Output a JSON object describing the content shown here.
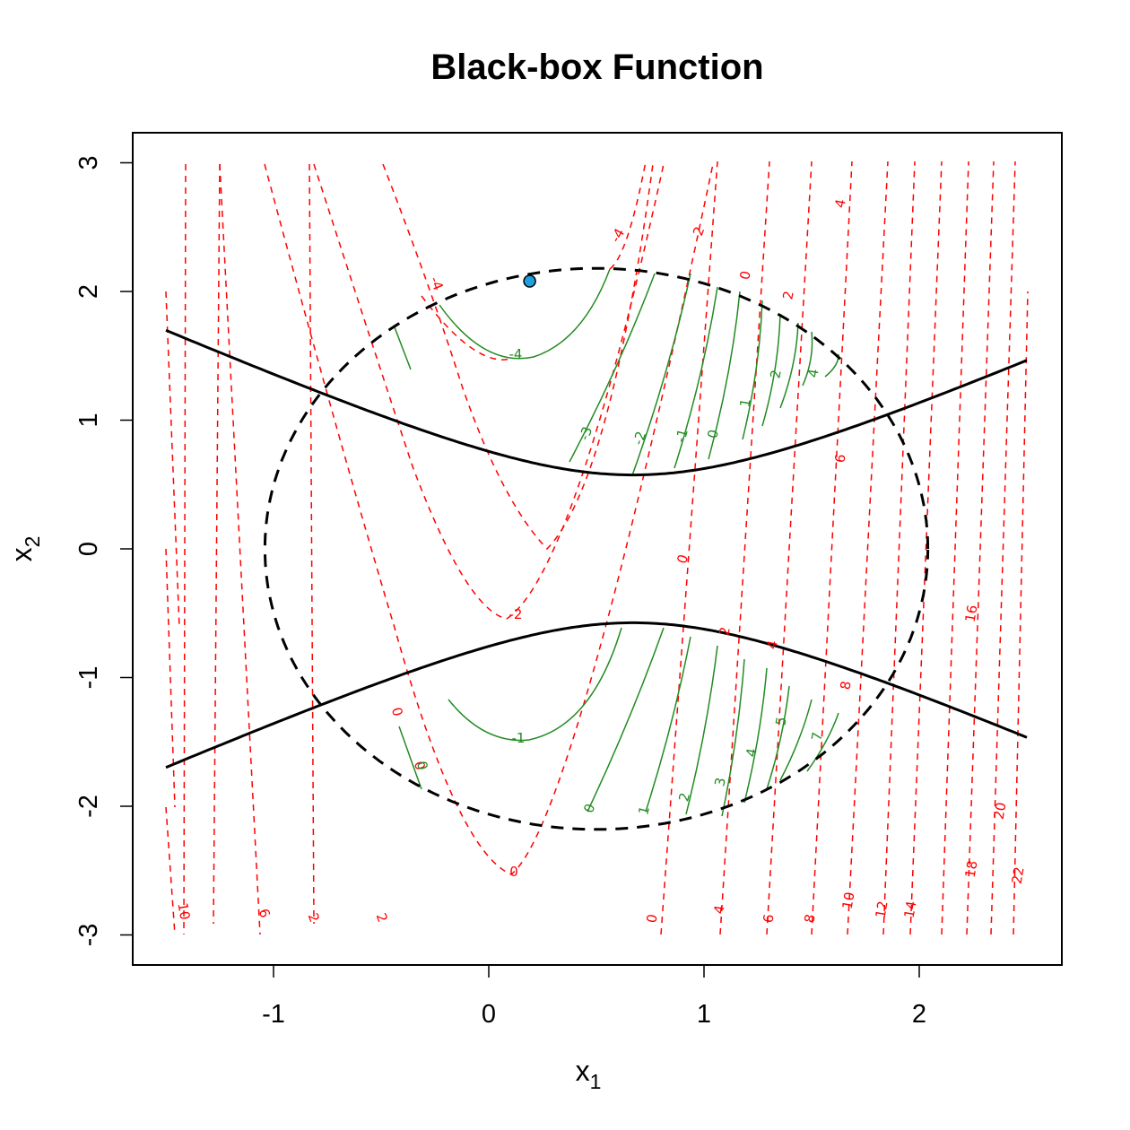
{
  "chart_data": {
    "type": "contour",
    "title": "Black-box Function",
    "xlabel": {
      "base": "x",
      "sub": "1"
    },
    "ylabel": {
      "base": "x",
      "sub": "2"
    },
    "xlim": [
      -1.6,
      2.7
    ],
    "ylim": [
      -3.2,
      3.2
    ],
    "xticks": [
      -1,
      0,
      1,
      2
    ],
    "xtick_labels": [
      "-1",
      "0",
      "1",
      "2"
    ],
    "yticks": [
      -3,
      -2,
      -1,
      0,
      1,
      2,
      3
    ],
    "ytick_labels": [
      "-3",
      "-2",
      "-1",
      "0",
      "1",
      "2",
      "3"
    ],
    "colors": {
      "objective": "#ff0000",
      "feasible": "#228b22",
      "boundary": "#000000",
      "point": "#1e9fe0"
    },
    "objective_contours": {
      "style": "dashed",
      "levels": [
        -4,
        -2,
        0,
        2,
        4,
        6,
        8,
        10,
        12,
        14,
        16,
        18,
        20,
        22
      ],
      "labels": [
        "-4",
        "-4",
        "-2",
        "-2",
        "0",
        "0",
        "0",
        "0",
        "0",
        "0",
        "2",
        "2",
        "2",
        "2",
        "4",
        "4",
        "4",
        "6",
        "6",
        "6",
        "8",
        "8",
        "10",
        "10",
        "12",
        "14",
        "16",
        "18",
        "20",
        "22"
      ]
    },
    "feasible_contours": {
      "style": "solid",
      "labels": [
        "-4",
        "-3",
        "-2",
        "-1",
        "0",
        "1",
        "2",
        "4",
        "-1",
        "0",
        "0",
        "1",
        "2",
        "3",
        "4",
        "5",
        "7"
      ]
    },
    "constraint_boundaries": [
      {
        "style": "solid",
        "description": "hyperbola"
      },
      {
        "style": "dashed",
        "description": "ellipse"
      }
    ],
    "points": [
      {
        "x": 0.19,
        "y": 2.08
      }
    ],
    "grid": false,
    "legend": "none"
  }
}
